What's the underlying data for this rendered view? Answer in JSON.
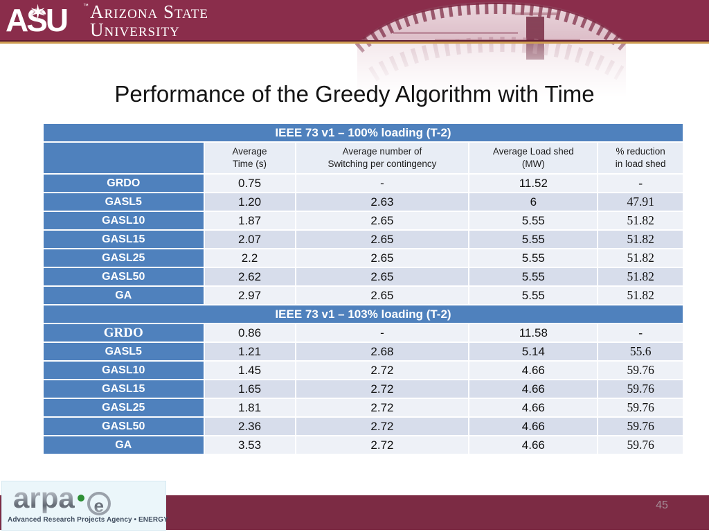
{
  "asu_header": {
    "logo_acronym": "ASU",
    "trademark": "™",
    "name_line1": "Arizona State",
    "name_line2": "University"
  },
  "slide": {
    "title": "Performance of the Greedy Algorithm with Time",
    "page_number": "45"
  },
  "table": {
    "column_headers": [
      {
        "lines": []
      },
      {
        "lines": [
          "Average",
          "Time (s)"
        ]
      },
      {
        "lines": [
          "Average  number of",
          "Switching per contingency"
        ]
      },
      {
        "lines": [
          "Average Load shed",
          "(MW)"
        ]
      },
      {
        "lines": [
          "% reduction",
          "in load shed"
        ]
      }
    ],
    "sections": [
      {
        "header": "IEEE 73 v1 – 100% loading (T-2)",
        "rows": [
          {
            "label": "GRDO",
            "cells": [
              "0.75",
              "-",
              "11.52",
              "-"
            ]
          },
          {
            "label": "GASL5",
            "cells": [
              "1.20",
              "2.63",
              "6",
              "47.91"
            ]
          },
          {
            "label": "GASL10",
            "cells": [
              "1.87",
              "2.65",
              "5.55",
              "51.82"
            ]
          },
          {
            "label": "GASL15",
            "cells": [
              "2.07",
              "2.65",
              "5.55",
              "51.82"
            ]
          },
          {
            "label": "GASL25",
            "cells": [
              "2.2",
              "2.65",
              "5.55",
              "51.82"
            ]
          },
          {
            "label": "GASL50",
            "cells": [
              "2.62",
              "2.65",
              "5.55",
              "51.82"
            ]
          },
          {
            "label": "GA",
            "cells": [
              "2.97",
              "2.65",
              "5.55",
              "51.82"
            ]
          }
        ]
      },
      {
        "header": "IEEE 73 v1 – 103% loading (T-2)",
        "rows": [
          {
            "label": "GRDO",
            "label_serif": true,
            "cells": [
              "0.86",
              "-",
              "11.58",
              "-"
            ]
          },
          {
            "label": "GASL5",
            "cells": [
              "1.21",
              "2.68",
              "5.14",
              "55.6"
            ]
          },
          {
            "label": "GASL10",
            "cells": [
              "1.45",
              "2.72",
              "4.66",
              "59.76"
            ]
          },
          {
            "label": "GASL15",
            "cells": [
              "1.65",
              "2.72",
              "4.66",
              "59.76"
            ]
          },
          {
            "label": "GASL25",
            "cells": [
              "1.81",
              "2.72",
              "4.66",
              "59.76"
            ]
          },
          {
            "label": "GASL50",
            "cells": [
              "2.36",
              "2.72",
              "4.66",
              "59.76"
            ]
          },
          {
            "label": "GA",
            "cells": [
              "3.53",
              "2.72",
              "4.66",
              "59.76"
            ]
          }
        ]
      }
    ]
  },
  "footer": {
    "arpae_wordmark": "arpa",
    "arpae_e": "e",
    "arpae_tagline": "Advanced Research Projects Agency • ENERGY",
    "page_number": "45"
  },
  "colors": {
    "maroon_band": "#8a2d4b",
    "maroon_footer": "#7c2b44",
    "gold_line": "#cf9e52",
    "table_blue": "#4f81bd",
    "row_light": "#eef1f7",
    "row_dark": "#d7ddeb"
  }
}
